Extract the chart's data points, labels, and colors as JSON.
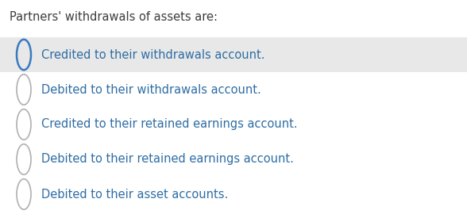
{
  "title": "Partners' withdrawals of assets are:",
  "title_color": "#3d3d3d",
  "title_fontsize": 10.5,
  "options": [
    "Credited to their withdrawals account.",
    "Debited to their withdrawals account.",
    "Credited to their retained earnings account.",
    "Debited to their retained earnings account.",
    "Debited to their asset accounts."
  ],
  "option_color": "#2e6da4",
  "option_fontsize": 10.5,
  "selected_index": 0,
  "selected_bg": "#e8e8e8",
  "selected_circle_color": "#3a7abf",
  "unselected_circle_color": "#b0b0b0",
  "background_color": "#ffffff",
  "fig_width": 5.88,
  "fig_height": 2.75,
  "dpi": 100
}
